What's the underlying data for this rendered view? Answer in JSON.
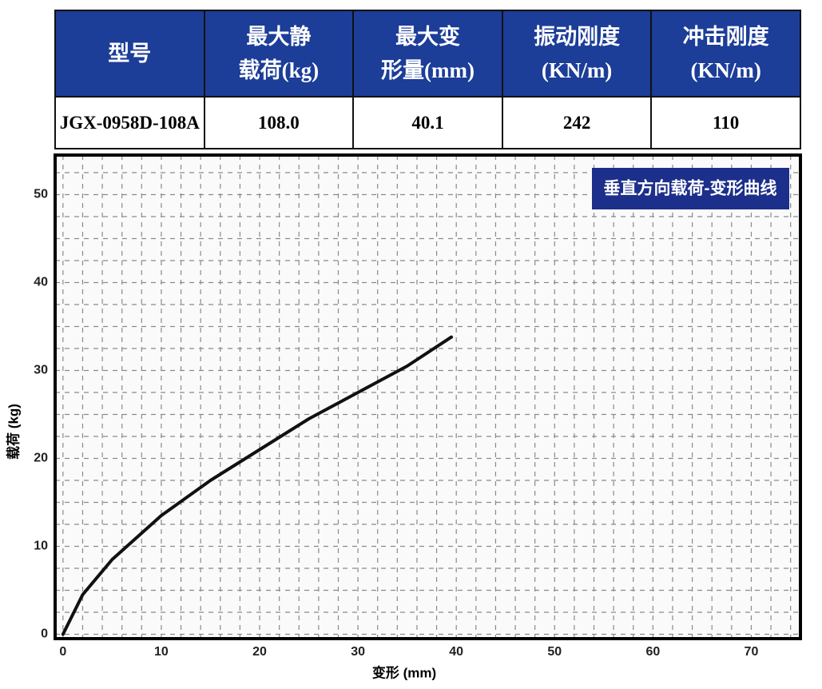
{
  "table": {
    "header": [
      [
        "型号"
      ],
      [
        "最大静",
        "载荷(kg)"
      ],
      [
        "最大变",
        "形量(mm)"
      ],
      [
        "振动刚度",
        "(KN/m)"
      ],
      [
        "冲击刚度",
        "(KN/m)"
      ]
    ],
    "rows": [
      [
        "JGX-0958D-108A",
        "108.0",
        "40.1",
        "242",
        "110"
      ]
    ]
  },
  "chart_data": {
    "type": "line",
    "title": "垂直方向载荷-变形曲线",
    "x_label": "变形 (mm)",
    "y_label": "载荷 (kg)",
    "x": [
      0,
      2,
      5,
      10,
      15,
      20,
      25,
      30,
      35,
      39.5
    ],
    "series": [
      {
        "name": "载荷",
        "color": "#111111",
        "values": [
          0,
          4.5,
          8.5,
          13.5,
          17.5,
          21,
          24.5,
          27.5,
          30.5,
          33.8
        ]
      }
    ],
    "xlim": [
      -0.8,
      75
    ],
    "ylim": [
      -0.5,
      54.5
    ],
    "xticks": [
      0,
      10,
      20,
      30,
      40,
      50,
      60,
      70
    ],
    "yticks": [
      0,
      10,
      20,
      30,
      40,
      50
    ],
    "grid": true,
    "xminor": 2,
    "yminor": 2.5,
    "title_color": "#1c2f8a"
  }
}
